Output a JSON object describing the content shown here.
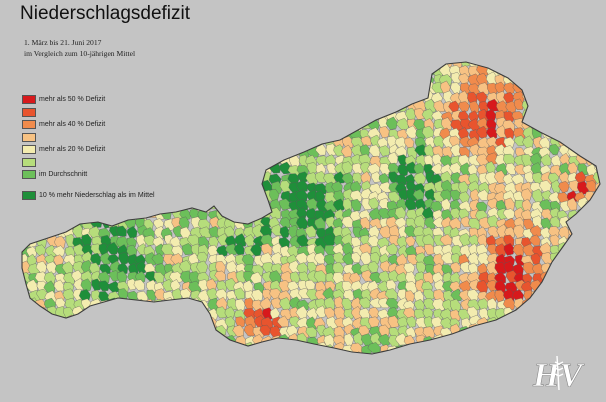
{
  "title": "Niederschlagsdefizit",
  "subtitle_line1": "1. März bis 21. Juni 2017",
  "subtitle_line2": "im Vergleich zum 10-jährigen Mittel",
  "legend": [
    {
      "label": "mehr als 50 % Defizit",
      "color": "#d7191c"
    },
    {
      "label": "",
      "color": "#e8542e"
    },
    {
      "label": "mehr als 40 % Defizit",
      "color": "#f08b4c"
    },
    {
      "label": "",
      "color": "#f7c283"
    },
    {
      "label": "mehr als 20 % Defizit",
      "color": "#f3ecaf"
    },
    {
      "label": "",
      "color": "#b6dd7b"
    },
    {
      "label": "im Durchschnitt",
      "color": "#6cbf5a"
    },
    {
      "label": "10 % mehr Niederschlag als im Mittel",
      "color": "#1f8f3a"
    }
  ],
  "logo_text": "HV",
  "map_colors": {
    "outline": "#4a4a4a",
    "hotspot": "#cf2a25"
  }
}
